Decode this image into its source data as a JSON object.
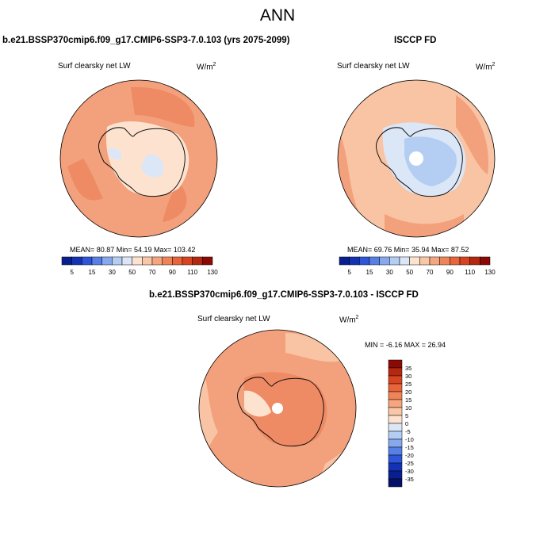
{
  "title": "ANN",
  "panels": [
    {
      "case_title": "b.e21.BSSP370cmip6.f09_g17.CMIP6-SSP3-7.0.103 (yrs 2075-2099)",
      "variable": "Surf clearsky net LW",
      "units": "W/m",
      "units_exp": "2",
      "stats": "MEAN=  80.87  Min=  54.19  Max= 103.42"
    },
    {
      "case_title": "ISCCP FD",
      "variable": "Surf clearsky net LW",
      "units": "W/m",
      "units_exp": "2",
      "stats": "MEAN=  69.76  Min=  35.94  Max=  87.52"
    }
  ],
  "colorbar": {
    "ticks": [
      "5",
      "15",
      "30",
      "50",
      "70",
      "90",
      "110",
      "130"
    ],
    "colors": [
      "#0a1f8f",
      "#1432b4",
      "#2e56d8",
      "#5680e6",
      "#86a8ee",
      "#b4cdf3",
      "#dbe6f6",
      "#fde3cf",
      "#f9c7a6",
      "#f5a67e",
      "#ef8459",
      "#e8643a",
      "#d8441f",
      "#b52810",
      "#8b0a05"
    ]
  },
  "difference": {
    "title": "b.e21.BSSP370cmip6.f09_g17.CMIP6-SSP3-7.0.103 - ISCCP FD",
    "variable": "Surf clearsky net LW",
    "units": "W/m",
    "units_exp": "2",
    "stats": "MIN = -6.16 MAX =  26.94",
    "labels": [
      "35",
      "30",
      "25",
      "20",
      "15",
      "10",
      "5",
      "0",
      "-5",
      "-10",
      "-15",
      "-20",
      "-25",
      "-30",
      "-35"
    ],
    "colors": [
      "#8b0a05",
      "#b52810",
      "#d8441f",
      "#e8643a",
      "#ef8459",
      "#f5a67e",
      "#f9c7a6",
      "#fde3cf",
      "#dbe6f6",
      "#b4cdf3",
      "#86a8ee",
      "#5680e6",
      "#2e56d8",
      "#1432b4",
      "#0a1f8f",
      "#051068"
    ]
  },
  "map_colors": {
    "ocean_a": "#f3a07c",
    "ocean_b": "#ee8a64",
    "ocean_c": "#f9c4a3",
    "ice_a": "#fde3cf",
    "ice_b": "#dbe6f6",
    "ice_c": "#b4cdf3",
    "coast": "#111111"
  }
}
